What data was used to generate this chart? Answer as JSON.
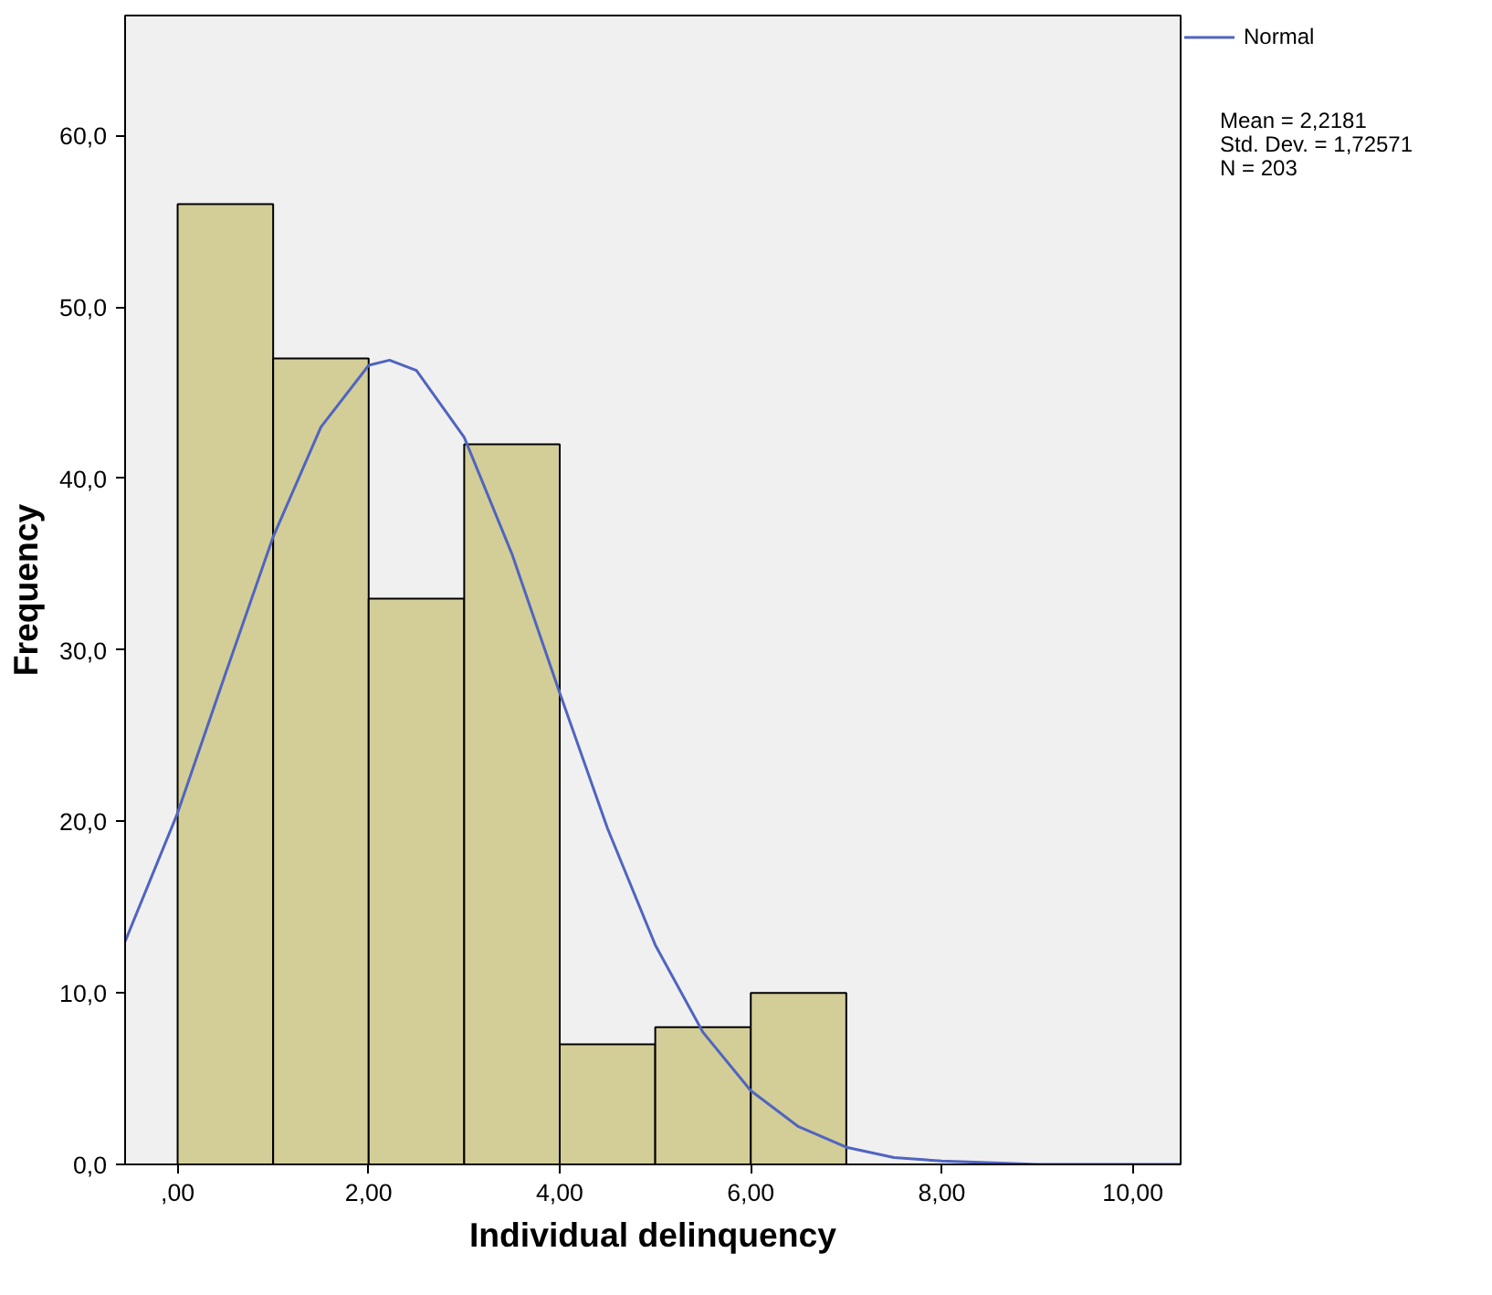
{
  "chart_data": {
    "type": "histogram",
    "xlabel": "Individual delinquency",
    "ylabel": "Frequency",
    "bins": [
      0,
      1,
      2,
      3,
      4,
      5,
      6,
      7
    ],
    "values": [
      56,
      47,
      33,
      42,
      7,
      8,
      10
    ],
    "color": "#d3ce97",
    "series": [
      {
        "type": "line",
        "name": "Normal",
        "color": "#5064c0",
        "x": [
          -0.55,
          0,
          0.5,
          1,
          1.5,
          2,
          2.2181,
          2.5,
          3,
          3.5,
          4,
          4.5,
          5,
          5.5,
          6,
          6.5,
          7,
          7.5,
          8,
          9,
          10,
          10.5
        ],
        "values": [
          13.0,
          20.5,
          28.6,
          36.6,
          43.0,
          46.6,
          46.9,
          46.3,
          42.4,
          35.6,
          27.5,
          19.6,
          12.8,
          7.7,
          4.3,
          2.2,
          1.0,
          0.4,
          0.2,
          0.0,
          0.0,
          0.0
        ]
      }
    ],
    "xlim": [
      -0.55,
      10.5
    ],
    "ylim": [
      0,
      67
    ],
    "xticks": [
      {
        "value": 0,
        "label": ",00"
      },
      {
        "value": 2,
        "label": "2,00"
      },
      {
        "value": 4,
        "label": "4,00"
      },
      {
        "value": 6,
        "label": "6,00"
      },
      {
        "value": 8,
        "label": "8,00"
      },
      {
        "value": 10,
        "label": "10,00"
      }
    ],
    "yticks": [
      {
        "value": 0,
        "label": "0,0"
      },
      {
        "value": 10,
        "label": "10,0"
      },
      {
        "value": 20,
        "label": "20,0"
      },
      {
        "value": 30,
        "label": "30,0"
      },
      {
        "value": 40,
        "label": "40,0"
      },
      {
        "value": 50,
        "label": "50,0"
      },
      {
        "value": 60,
        "label": "60,0"
      }
    ],
    "grid": false,
    "legend": "top right",
    "annotations": [
      "Mean = 2,2181",
      "Std. Dev. = 1,72571",
      "N = 203"
    ]
  }
}
